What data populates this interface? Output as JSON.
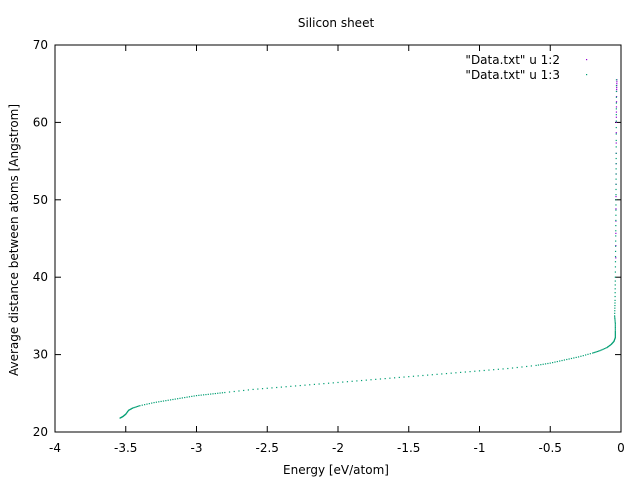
{
  "chart_data": {
    "type": "scatter",
    "title": "Silicon sheet",
    "xlabel": "Energy [eV/atom]",
    "ylabel": "Average distance between atoms [Angstrom]",
    "xlim": [
      -4,
      0
    ],
    "ylim": [
      20,
      70
    ],
    "xticks": [
      -4,
      -3.5,
      -3,
      -2.5,
      -2,
      -1.5,
      -1,
      -0.5,
      0
    ],
    "xtick_labels": [
      "-4",
      "-3.5",
      "-3",
      "-2.5",
      "-2",
      "-1.5",
      "-1",
      "-0.5",
      "0"
    ],
    "yticks": [
      20,
      30,
      40,
      50,
      60,
      70
    ],
    "ytick_labels": [
      "20",
      "30",
      "40",
      "50",
      "60",
      "70"
    ],
    "grid": false,
    "legend_position": "top-right",
    "series": [
      {
        "name": "\"Data.txt\" u 1:2",
        "color": "#9400d3",
        "x": [
          -0.037,
          -0.035,
          -0.033,
          -0.031,
          -0.029
        ],
        "y": [
          42.5,
          52.0,
          60.0,
          64.0,
          65.5
        ]
      },
      {
        "name": "\"Data.txt\" u 1:3",
        "color": "#009e73",
        "x": [
          -3.54,
          -3.52,
          -3.5,
          -3.48,
          -3.45,
          -3.4,
          -3.3,
          -3.2,
          -3.1,
          -3.0,
          -2.9,
          -2.8,
          -2.6,
          -2.4,
          -2.2,
          -2.0,
          -1.8,
          -1.6,
          -1.4,
          -1.2,
          -1.0,
          -0.8,
          -0.6,
          -0.5,
          -0.4,
          -0.3,
          -0.2,
          -0.15,
          -0.1,
          -0.07,
          -0.05,
          -0.04,
          -0.04,
          -0.04,
          -0.045,
          -0.042,
          -0.04,
          -0.038,
          -0.036,
          -0.035,
          -0.034,
          -0.033,
          -0.032
        ],
        "y": [
          21.8,
          22.0,
          22.3,
          22.8,
          23.1,
          23.4,
          23.8,
          24.1,
          24.4,
          24.7,
          24.9,
          25.1,
          25.5,
          25.8,
          26.1,
          26.4,
          26.7,
          27.0,
          27.3,
          27.6,
          27.9,
          28.2,
          28.6,
          28.9,
          29.3,
          29.7,
          30.2,
          30.5,
          30.9,
          31.3,
          31.7,
          32.2,
          33.0,
          34.0,
          35.0,
          37.0,
          40.0,
          44.0,
          48.0,
          52.0,
          56.0,
          61.0,
          65.5
        ]
      }
    ]
  }
}
